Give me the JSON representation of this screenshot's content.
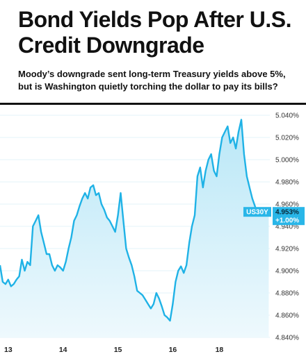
{
  "header": {
    "title": "Bond Yields Pop After U.S. Credit Downgrade",
    "subtitle": "Moody’s downgrade sent long-term Treasury yields above 5%, but is Washington quietly torching the dollar to pay its bills?"
  },
  "colors": {
    "line": "#1fb2e6",
    "fill_top": "#b9e7f7",
    "fill_bottom": "#eef9fd",
    "badge": "#29b6e8",
    "grid": "#c8e8f4"
  },
  "chart_data": {
    "type": "area",
    "title": "Bond Yields Pop After U.S. Credit Downgrade",
    "subtitle": "Moody’s downgrade sent long-term Treasury yields above 5%, but is Washington quietly torching the dollar to pay its bills?",
    "xlabel": "",
    "ylabel": "",
    "ylim": [
      4.84,
      5.04
    ],
    "y_ticks": [
      "5.040%",
      "5.020%",
      "5.000%",
      "4.980%",
      "4.960%",
      "4.940%",
      "4.920%",
      "4.900%",
      "4.880%",
      "4.860%",
      "4.840%"
    ],
    "x_ticks": [
      {
        "label": "13",
        "x": 0.05
      },
      {
        "label": "14",
        "x": 1.05
      },
      {
        "label": "15",
        "x": 2.05
      },
      {
        "label": "16",
        "x": 3.05
      },
      {
        "label": "18",
        "x": 3.9
      }
    ],
    "xlim": [
      -0.1,
      4.82
    ],
    "grid": "horizontal, faint",
    "legend": "none",
    "series": [
      {
        "name": "US30Y",
        "x": [
          -0.1,
          -0.05,
          0.0,
          0.05,
          0.1,
          0.15,
          0.2,
          0.25,
          0.3,
          0.35,
          0.4,
          0.45,
          0.5,
          0.55,
          0.6,
          0.65,
          0.7,
          0.75,
          0.8,
          0.85,
          0.9,
          0.95,
          1.0,
          1.05,
          1.1,
          1.15,
          1.2,
          1.25,
          1.3,
          1.35,
          1.4,
          1.45,
          1.5,
          1.55,
          1.6,
          1.65,
          1.7,
          1.75,
          1.8,
          1.85,
          1.9,
          1.95,
          2.0,
          2.05,
          2.1,
          2.15,
          2.2,
          2.25,
          2.3,
          2.35,
          2.4,
          2.45,
          2.5,
          2.55,
          2.6,
          2.65,
          2.7,
          2.75,
          2.8,
          2.85,
          2.9,
          2.95,
          3.0,
          3.05,
          3.1,
          3.15,
          3.2,
          3.25,
          3.3,
          3.35,
          3.4,
          3.45,
          3.5,
          3.55,
          3.6,
          3.65,
          3.7,
          3.75,
          3.8,
          3.85,
          3.9,
          3.95,
          4.0,
          4.05,
          4.1,
          4.15,
          4.2,
          4.25,
          4.3,
          4.35,
          4.4,
          4.45,
          4.5,
          4.55,
          4.6,
          4.65,
          4.7,
          4.75,
          4.8
        ],
        "values": [
          4.905,
          4.89,
          4.888,
          4.892,
          4.886,
          4.888,
          4.892,
          4.895,
          4.91,
          4.9,
          4.908,
          4.905,
          4.94,
          4.945,
          4.95,
          4.935,
          4.925,
          4.915,
          4.915,
          4.905,
          4.9,
          4.905,
          4.903,
          4.9,
          4.908,
          4.92,
          4.93,
          4.945,
          4.95,
          4.958,
          4.965,
          4.97,
          4.965,
          4.975,
          4.977,
          4.968,
          4.97,
          4.96,
          4.955,
          4.948,
          4.945,
          4.94,
          4.935,
          4.95,
          4.97,
          4.945,
          4.92,
          4.912,
          4.905,
          4.895,
          4.882,
          4.88,
          4.878,
          4.874,
          4.87,
          4.866,
          4.87,
          4.88,
          4.875,
          4.868,
          4.86,
          4.858,
          4.855,
          4.87,
          4.89,
          4.9,
          4.904,
          4.898,
          4.905,
          4.925,
          4.94,
          4.95,
          4.985,
          4.993,
          4.975,
          4.99,
          5.0,
          5.005,
          4.99,
          4.985,
          5.005,
          5.02,
          5.025,
          5.03,
          5.015,
          5.02,
          5.01,
          5.025,
          5.036,
          5.005,
          4.985,
          4.975,
          4.965,
          4.958,
          4.95,
          4.952,
          4.955,
          4.954,
          4.953
        ]
      }
    ],
    "badge": {
      "label": "US30Y",
      "value": "4.953%",
      "change": "+1.00%",
      "y": 4.953
    }
  }
}
